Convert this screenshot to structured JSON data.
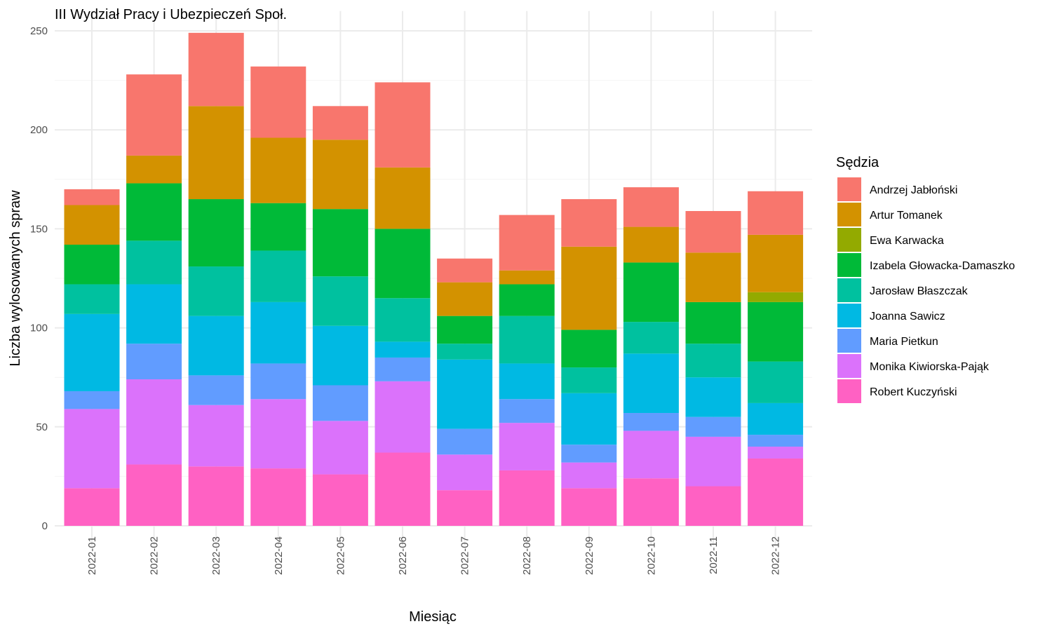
{
  "chart_data": {
    "type": "bar",
    "stacked": true,
    "title": "III Wydział Pracy i Ubezpieczeń Społ.",
    "xlabel": "Miesiąc",
    "ylabel": "Liczba wylosowanych spraw",
    "ylim": [
      0,
      260
    ],
    "yticks": [
      0,
      50,
      100,
      150,
      200,
      250
    ],
    "grid": true,
    "legend_title": "Sędzia",
    "legend_position": "right",
    "categories": [
      "2022-01",
      "2022-02",
      "2022-03",
      "2022-04",
      "2022-05",
      "2022-06",
      "2022-07",
      "2022-08",
      "2022-09",
      "2022-10",
      "2022-11",
      "2022-12"
    ],
    "series": [
      {
        "name": "Andrzej Jabłoński",
        "color": "#F8766D",
        "values": [
          8,
          41,
          37,
          36,
          17,
          43,
          12,
          28,
          24,
          20,
          21,
          22
        ]
      },
      {
        "name": "Artur Tomanek",
        "color": "#D39200",
        "values": [
          20,
          14,
          47,
          33,
          35,
          31,
          17,
          7,
          42,
          18,
          25,
          29
        ]
      },
      {
        "name": "Ewa Karwacka",
        "color": "#93AA00",
        "values": [
          0,
          0,
          0,
          0,
          0,
          0,
          0,
          0,
          0,
          0,
          0,
          5
        ]
      },
      {
        "name": "Izabela Głowacka-Damaszko",
        "color": "#00BA38",
        "values": [
          20,
          29,
          34,
          24,
          34,
          35,
          14,
          16,
          19,
          30,
          21,
          30
        ]
      },
      {
        "name": "Jarosław Błaszczak",
        "color": "#00C19F",
        "values": [
          15,
          22,
          25,
          26,
          25,
          22,
          8,
          24,
          13,
          16,
          17,
          21
        ]
      },
      {
        "name": "Joanna Sawicz",
        "color": "#00B9E3",
        "values": [
          39,
          30,
          30,
          31,
          30,
          8,
          35,
          18,
          26,
          30,
          20,
          16
        ]
      },
      {
        "name": "Maria Pietkun",
        "color": "#619CFF",
        "values": [
          9,
          18,
          15,
          18,
          18,
          12,
          13,
          12,
          9,
          9,
          10,
          6
        ]
      },
      {
        "name": "Monika Kiwiorska-Pająk",
        "color": "#DB72FB",
        "values": [
          40,
          43,
          31,
          35,
          27,
          36,
          18,
          24,
          13,
          24,
          25,
          6
        ]
      },
      {
        "name": "Robert Kuczyński",
        "color": "#FF61C3",
        "values": [
          19,
          31,
          30,
          29,
          26,
          37,
          18,
          28,
          19,
          24,
          20,
          34
        ]
      }
    ]
  }
}
